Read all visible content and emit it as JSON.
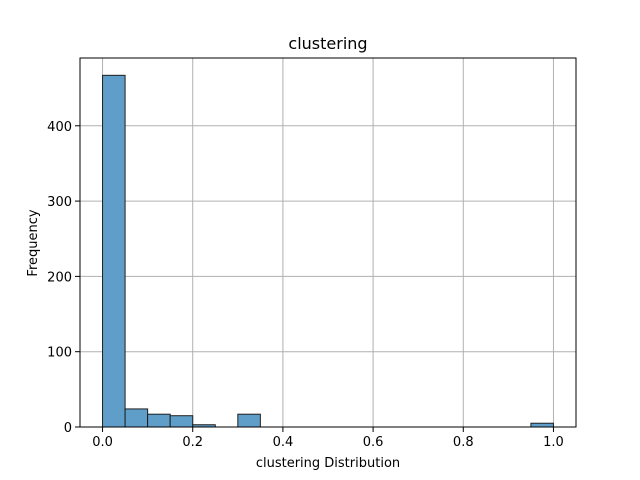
{
  "chart_data": {
    "type": "bar",
    "title": "clustering",
    "xlabel": "clustering Distribution",
    "ylabel": "Frequency",
    "xlim": [
      -0.05,
      1.05
    ],
    "ylim": [
      0,
      490
    ],
    "xticks": [
      0.0,
      0.2,
      0.4,
      0.6,
      0.8,
      1.0
    ],
    "xtick_labels": [
      "0.0",
      "0.2",
      "0.4",
      "0.6",
      "0.8",
      "1.0"
    ],
    "yticks": [
      0,
      100,
      200,
      300,
      400
    ],
    "ytick_labels": [
      "0",
      "100",
      "200",
      "300",
      "400"
    ],
    "grid": true,
    "bin_width": 0.05,
    "bins": [
      {
        "x0": 0.0,
        "x1": 0.05,
        "count": 467
      },
      {
        "x0": 0.05,
        "x1": 0.1,
        "count": 24
      },
      {
        "x0": 0.1,
        "x1": 0.15,
        "count": 17
      },
      {
        "x0": 0.15,
        "x1": 0.2,
        "count": 15
      },
      {
        "x0": 0.2,
        "x1": 0.25,
        "count": 3
      },
      {
        "x0": 0.25,
        "x1": 0.3,
        "count": 0
      },
      {
        "x0": 0.3,
        "x1": 0.35,
        "count": 17
      },
      {
        "x0": 0.35,
        "x1": 0.4,
        "count": 0
      },
      {
        "x0": 0.4,
        "x1": 0.45,
        "count": 0
      },
      {
        "x0": 0.45,
        "x1": 0.5,
        "count": 0
      },
      {
        "x0": 0.5,
        "x1": 0.55,
        "count": 0
      },
      {
        "x0": 0.55,
        "x1": 0.6,
        "count": 0
      },
      {
        "x0": 0.6,
        "x1": 0.65,
        "count": 0
      },
      {
        "x0": 0.65,
        "x1": 0.7,
        "count": 0
      },
      {
        "x0": 0.7,
        "x1": 0.75,
        "count": 0
      },
      {
        "x0": 0.75,
        "x1": 0.8,
        "count": 0
      },
      {
        "x0": 0.8,
        "x1": 0.85,
        "count": 0
      },
      {
        "x0": 0.85,
        "x1": 0.9,
        "count": 0
      },
      {
        "x0": 0.9,
        "x1": 0.95,
        "count": 0
      },
      {
        "x0": 0.95,
        "x1": 1.0,
        "count": 5
      }
    ],
    "colors": {
      "bar_fill": "#5f9ec8",
      "bar_edge": "#1f1f1f",
      "grid": "#b0b0b0",
      "axis": "#000000"
    }
  }
}
